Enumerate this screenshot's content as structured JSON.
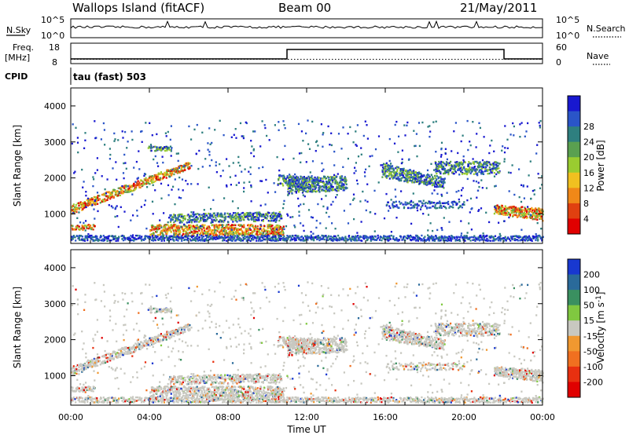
{
  "header": {
    "station": "Wallops Island (fitACF)",
    "beam": "Beam 00",
    "date": "21/May/2011"
  },
  "noise_panel": {
    "left_label": "N.Sky",
    "right_label": "N.Search",
    "ticks_left": [
      "10^5",
      "10^0"
    ],
    "ticks_right": [
      "10^5",
      "10^0"
    ]
  },
  "freq_panel": {
    "left_label_1": "Freq.",
    "left_label_2": "[MHz]",
    "ticks_left": [
      "18",
      "8"
    ],
    "right_label": "Nave",
    "ticks_right": [
      "60",
      "0"
    ],
    "cpid_label": "CPID",
    "cpid_value": "tau (fast) 503"
  },
  "chart_data": [
    {
      "type": "heatmap",
      "name": "power",
      "ylabel": "Slant Range [km]",
      "xlabel": "",
      "y_ticks": [
        1000,
        2000,
        3000,
        4000
      ],
      "ylim": [
        180,
        4500
      ],
      "colorbar": {
        "label": "Power [dB]",
        "ticks": [
          "4",
          "8",
          "12",
          "16",
          "20",
          "24",
          "28"
        ],
        "colors": [
          "#1818d0",
          "#2a55c8",
          "#2e7f7f",
          "#5aa050",
          "#9acc30",
          "#f0c020",
          "#f08818",
          "#e04010",
          "#e00000"
        ]
      },
      "bands": [
        {
          "t0": 0.0,
          "t1": 6.0,
          "r0": 1150,
          "r1": 2400,
          "level": "high"
        },
        {
          "t0": 4.0,
          "t1": 10.7,
          "r0": 550,
          "r1": 1000,
          "level": "mid"
        },
        {
          "t0": 11.0,
          "t1": 14.0,
          "r0": 1800,
          "r1": 2000,
          "level": "mid"
        },
        {
          "t0": 15.8,
          "t1": 22.0,
          "r0": 1700,
          "r1": 2400,
          "level": "mid"
        },
        {
          "t0": 22.0,
          "t1": 24.0,
          "r0": 1150,
          "r1": 800,
          "level": "high"
        }
      ]
    },
    {
      "type": "heatmap",
      "name": "velocity",
      "ylabel": "Slant Range [km]",
      "xlabel": "Time UT",
      "y_ticks": [
        1000,
        2000,
        3000,
        4000
      ],
      "ylim": [
        180,
        4500
      ],
      "x_ticks": [
        "00:00",
        "04:00",
        "08:00",
        "12:00",
        "16:00",
        "20:00",
        "00:00"
      ],
      "xlim": [
        0,
        24
      ],
      "colorbar": {
        "label": "Velocity [m s-1]",
        "ticks": [
          "200",
          "100",
          "50",
          "15",
          "-15",
          "-50",
          "-100",
          "-200"
        ],
        "colors": [
          "#1838d0",
          "#2a6a9a",
          "#3a9060",
          "#80c840",
          "#c8c8c0",
          "#f09830",
          "#f07020",
          "#e83010",
          "#e00000"
        ]
      }
    }
  ]
}
